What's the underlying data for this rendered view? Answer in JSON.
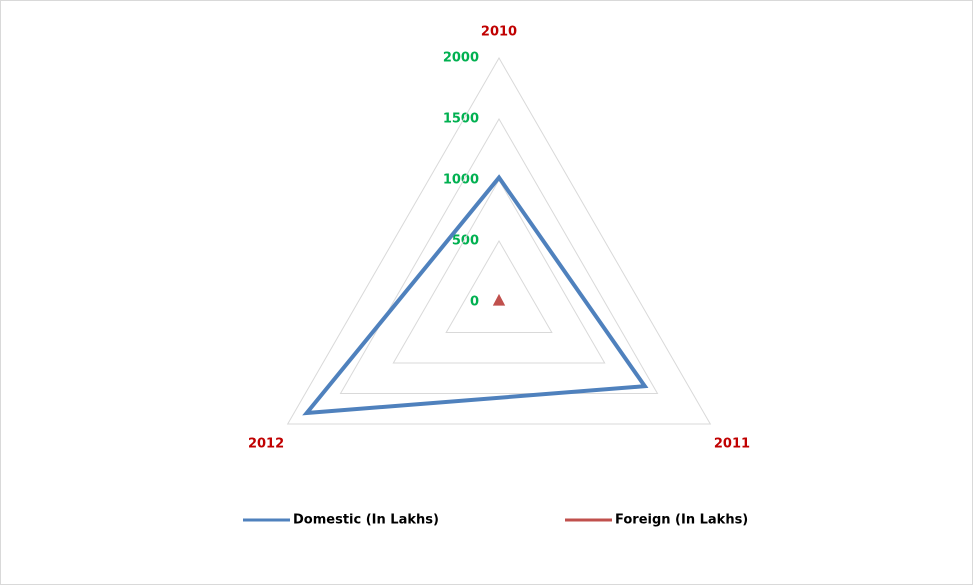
{
  "chart_data": {
    "type": "radar",
    "categories": [
      "2010",
      "2011",
      "2012"
    ],
    "series": [
      {
        "name": "Domestic (In Lakhs)",
        "color": "#4f81bd",
        "values": [
          1020,
          1380,
          1820
        ]
      },
      {
        "name": "Foreign (In Lakhs)",
        "color": "#c0504d",
        "values": [
          40,
          35,
          35
        ]
      }
    ],
    "rlim": [
      0,
      2000
    ],
    "rticks": [
      0,
      500,
      1000,
      1500,
      2000
    ],
    "grid": true,
    "legend": "bottom",
    "category_label_color": "#c00000",
    "tick_label_color": "#00b050"
  }
}
